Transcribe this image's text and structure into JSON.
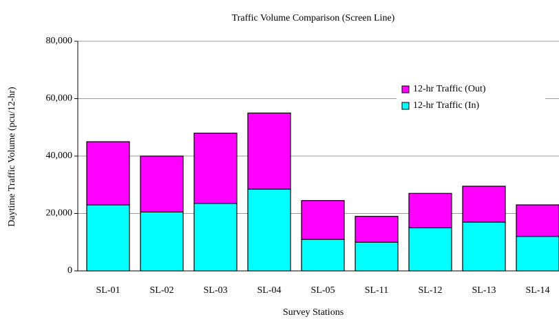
{
  "chart_data": {
    "type": "stacked_bar",
    "title": "Traffic Volume Comparison (Screen Line)",
    "xlabel": "Survey Stations",
    "ylabel": "Daytime Traffic Volume (pcu/12-hr)",
    "categories": [
      "SL-01",
      "SL-02",
      "SL-03",
      "SL-04",
      "SL-05",
      "SL-11",
      "SL-12",
      "SL-13",
      "SL-14"
    ],
    "series": [
      {
        "name": "12-hr Traffic (In)",
        "color": "#00ffff",
        "values": [
          23000,
          20500,
          23500,
          28500,
          11000,
          10000,
          15000,
          17000,
          12000
        ]
      },
      {
        "name": "12-hr Traffic (Out)",
        "color": "#ff00ff",
        "values": [
          22000,
          19500,
          24500,
          26500,
          13500,
          9000,
          12000,
          12500,
          11000
        ]
      }
    ],
    "ylim": [
      0,
      80000
    ],
    "yticks": [
      0,
      {
        "value": 20000,
        "label": "20,000"
      },
      {
        "value": 40000,
        "label": "40,000"
      },
      {
        "value": 60000,
        "label": "60,000"
      },
      {
        "value": 80000,
        "label": "80,000"
      }
    ],
    "grid": true,
    "legend": "upper right"
  }
}
